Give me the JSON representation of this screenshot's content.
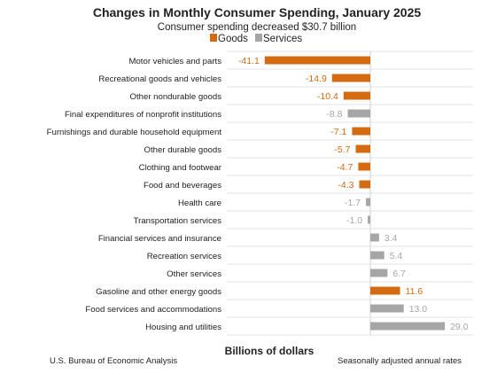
{
  "chart_data": {
    "type": "bar",
    "orientation": "horizontal",
    "title": "Changes in Monthly Consumer Spending, January 2025",
    "subtitle": "Consumer spending decreased $30.7 billion",
    "xlabel": "Billions of dollars",
    "source": "U.S. Bureau of Economic Analysis",
    "note": "Seasonally adjusted annual rates",
    "legend": {
      "placement": "top-center",
      "items": [
        {
          "name": "Goods",
          "color": "#d46a12"
        },
        {
          "name": "Services",
          "color": "#a6a6a6"
        }
      ]
    },
    "colors": {
      "Goods": "#d46a12",
      "Services": "#a6a6a6",
      "gridline": "#e3e3e3",
      "text": "#222222"
    },
    "xlim": [
      -45,
      33
    ],
    "grid": true,
    "categories": [
      {
        "label": "Motor vehicles and parts",
        "value": -41.1,
        "value_label": "-41.1",
        "type": "Goods"
      },
      {
        "label": "Recreational goods and vehicles",
        "value": -14.9,
        "value_label": "-14.9",
        "type": "Goods"
      },
      {
        "label": "Other nondurable goods",
        "value": -10.4,
        "value_label": "-10.4",
        "type": "Goods"
      },
      {
        "label": "Final expenditures of nonprofit institutions",
        "value": -8.8,
        "value_label": "-8.8",
        "type": "Services"
      },
      {
        "label": "Furnishings and durable household equipment",
        "value": -7.1,
        "value_label": "-7.1",
        "type": "Goods"
      },
      {
        "label": "Other durable goods",
        "value": -5.7,
        "value_label": "-5.7",
        "type": "Goods"
      },
      {
        "label": "Clothing and footwear",
        "value": -4.7,
        "value_label": "-4.7",
        "type": "Goods"
      },
      {
        "label": "Food and beverages",
        "value": -4.3,
        "value_label": "-4.3",
        "type": "Goods"
      },
      {
        "label": "Health care",
        "value": -1.7,
        "value_label": "-1.7",
        "type": "Services"
      },
      {
        "label": "Transportation services",
        "value": -1.0,
        "value_label": "-1.0",
        "type": "Services"
      },
      {
        "label": "Financial services and insurance",
        "value": 3.4,
        "value_label": "3.4",
        "type": "Services"
      },
      {
        "label": "Recreation services",
        "value": 5.4,
        "value_label": "5.4",
        "type": "Services"
      },
      {
        "label": "Other services",
        "value": 6.7,
        "value_label": "6.7",
        "type": "Services"
      },
      {
        "label": "Gasoline and other energy goods",
        "value": 11.6,
        "value_label": "11.6",
        "type": "Goods"
      },
      {
        "label": "Food services and accommodations",
        "value": 13.0,
        "value_label": "13.0",
        "type": "Services"
      },
      {
        "label": "Housing and utilities",
        "value": 29.0,
        "value_label": "29.0",
        "type": "Services"
      }
    ]
  }
}
